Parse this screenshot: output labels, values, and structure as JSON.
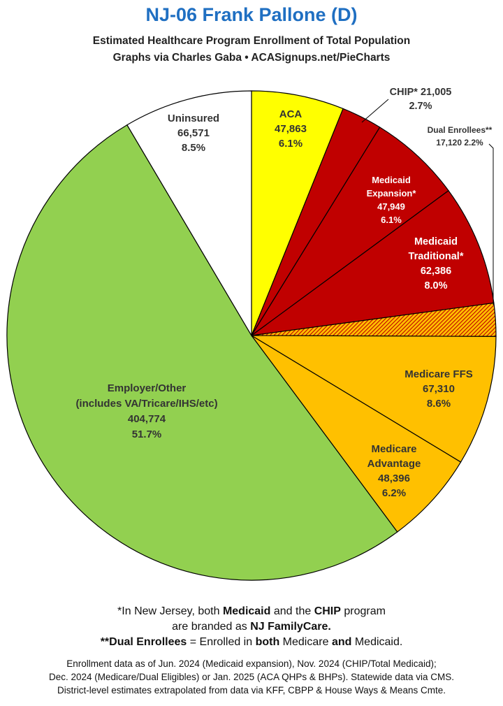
{
  "header": {
    "title": "NJ-06 Frank Pallone (D)",
    "subtitle": "Estimated Healthcare Program Enrollment of Total Population",
    "credit": "Graphs via Charles Gaba  •  ACASignups.net/PieCharts"
  },
  "chart_data": {
    "type": "pie",
    "title": "NJ-06 Frank Pallone (D)",
    "subtitle": "Estimated Healthcare Program Enrollment of Total Population",
    "slices": [
      {
        "key": "aca",
        "lines": [
          "ACA",
          "47,863",
          "6.1%"
        ],
        "value": 47863,
        "percent": 6.1,
        "color": "#ffff00",
        "text_color": "#333333"
      },
      {
        "key": "chip",
        "lines": [
          "CHIP* 21,005",
          "2.7%"
        ],
        "value": 21005,
        "percent": 2.7,
        "color": "#c00000",
        "text_color": "#333333"
      },
      {
        "key": "medicaid_expansion",
        "lines": [
          "Medicaid",
          "Expansion*",
          "47,949",
          "6.1%"
        ],
        "value": 47949,
        "percent": 6.1,
        "color": "#c00000",
        "text_color": "#ffffff"
      },
      {
        "key": "medicaid_traditional",
        "lines": [
          "Medicaid",
          "Traditional*",
          "62,386",
          "8.0%"
        ],
        "value": 62386,
        "percent": 8.0,
        "color": "#c00000",
        "text_color": "#ffffff"
      },
      {
        "key": "dual_enrollees",
        "lines": [
          "Dual Enrollees**",
          "17,120 2.2%"
        ],
        "value": 17120,
        "percent": 2.2,
        "color": "#e07000",
        "pattern": "hatch",
        "text_color": "#333333"
      },
      {
        "key": "medicare_ffs",
        "lines": [
          "Medicare FFS",
          "67,310",
          "8.6%"
        ],
        "value": 67310,
        "percent": 8.6,
        "color": "#ffc000",
        "text_color": "#333333"
      },
      {
        "key": "medicare_advantage",
        "lines": [
          "Medicare",
          "Advantage",
          "48,396",
          "6.2%"
        ],
        "value": 48396,
        "percent": 6.2,
        "color": "#ffc000",
        "text_color": "#333333"
      },
      {
        "key": "employer_other",
        "lines": [
          "Employer/Other",
          "(includes VA/Tricare/IHS/etc)",
          "404,774",
          "51.7%"
        ],
        "value": 404774,
        "percent": 51.7,
        "color": "#92d050",
        "text_color": "#333333"
      },
      {
        "key": "uninsured",
        "lines": [
          "Uninsured",
          "66,571",
          "8.5%"
        ],
        "value": 66571,
        "percent": 8.5,
        "color": "#ffffff",
        "text_color": "#333333"
      }
    ]
  },
  "notes": {
    "line1_pre": "*In New Jersey, both ",
    "line1_b1": "Medicaid",
    "line1_mid": " and the ",
    "line1_b2": "CHIP",
    "line1_post": " program",
    "line2_pre": "are branded as ",
    "line2_b": "NJ FamilyCare.",
    "line3_b1": "**Dual Enrollees",
    "line3_mid": " = Enrolled in ",
    "line3_b2": "both",
    "line3_mid2": " Medicare ",
    "line3_b3": "and",
    "line3_post": " Medicaid."
  },
  "footer": {
    "line1": "Enrollment data as of Jun. 2024 (Medicaid expansion), Nov. 2024 (CHIP/Total Medicaid);",
    "line2": "Dec. 2024 (Medicare/Dual Eligibles) or Jan. 2025 (ACA QHPs & BHPs). Statewide data via CMS.",
    "line3": "District-level estimates extrapolated from data via KFF, CBPP & House Ways & Means Cmte."
  }
}
